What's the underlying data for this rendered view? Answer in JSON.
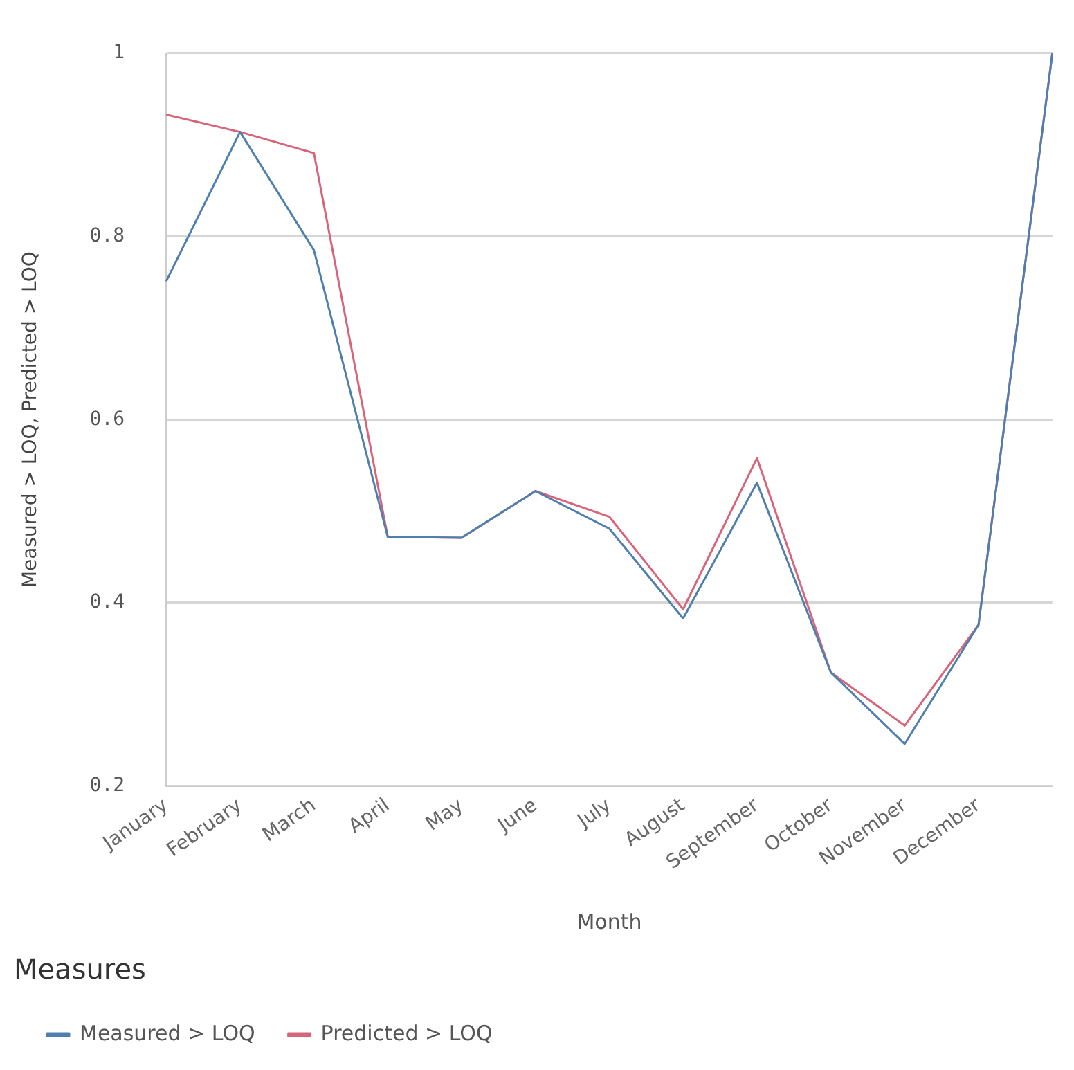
{
  "chart_data": {
    "type": "line",
    "xlabel": "Month",
    "ylabel": "Measured > LOQ, Predicted > LOQ",
    "legend_title": "Measures",
    "categories": [
      "January",
      "February",
      "March",
      "April",
      "May",
      "June",
      "July",
      "August",
      "September",
      "October",
      "November",
      "December",
      null
    ],
    "series": [
      {
        "name": "Measured > LOQ",
        "color": "#4f7fae",
        "values": [
          0.751,
          0.914,
          0.785,
          0.472,
          0.471,
          0.522,
          0.481,
          0.383,
          0.531,
          0.324,
          0.246,
          0.376,
          1.0
        ]
      },
      {
        "name": "Predicted > LOQ",
        "color": "#d9647a",
        "values": [
          0.933,
          0.914,
          0.891,
          0.472,
          0.471,
          0.522,
          0.494,
          0.393,
          0.558,
          0.324,
          0.266,
          0.376,
          1.0
        ]
      }
    ],
    "ylim": [
      0.2,
      1
    ],
    "yticks": [
      0.2,
      0.4,
      0.6,
      0.8,
      1
    ],
    "grid": "y",
    "legend": "bottom left",
    "marker": "none",
    "line_style": "solid"
  }
}
